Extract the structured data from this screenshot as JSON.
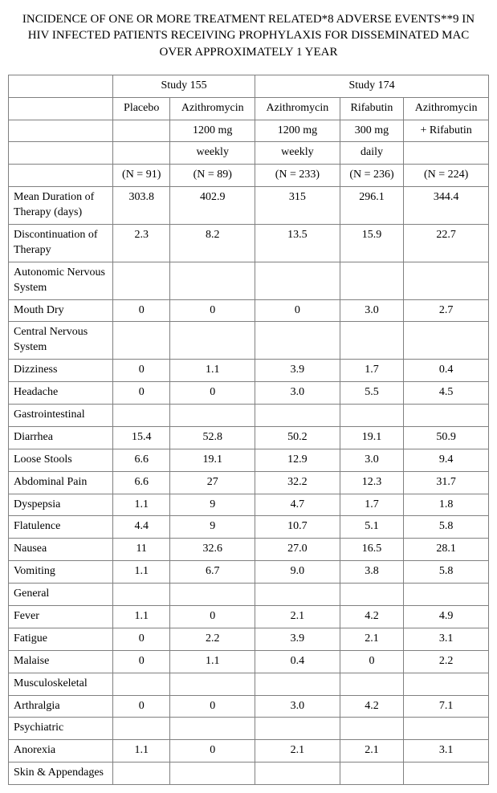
{
  "title": "INCIDENCE OF ONE OR MORE TREATMENT RELATED*8 ADVERSE EVENTS**9 IN HIV INFECTED PATIENTS RECEIVING PROPHYLAXIS FOR DISSEMINATED MAC OVER APPROXIMATELY 1 YEAR",
  "studyHeaders": {
    "s155": "Study 155",
    "s174": "Study 174"
  },
  "colHead1": [
    "Placebo",
    "Azithromycin",
    "Azithromycin",
    "Rifabutin",
    "Azithromycin"
  ],
  "colHead2": [
    "",
    "1200 mg",
    "1200 mg",
    "300 mg",
    "+ Rifabutin"
  ],
  "colHead3": [
    "",
    "weekly",
    "weekly",
    "daily",
    ""
  ],
  "colHead4": [
    "(N = 91)",
    "(N = 89)",
    "(N = 233)",
    "(N = 236)",
    "(N = 224)"
  ],
  "rows": [
    {
      "label": "Mean Duration of Therapy (days)",
      "v": [
        "303.8",
        "402.9",
        "315",
        "296.1",
        "344.4"
      ]
    },
    {
      "label": "Discontinuation of Therapy",
      "v": [
        "2.3",
        "8.2",
        "13.5",
        "15.9",
        "22.7"
      ]
    },
    {
      "label": "Autonomic Nervous System",
      "v": [
        "",
        "",
        "",
        "",
        ""
      ]
    },
    {
      "label": "Mouth Dry",
      "v": [
        "0",
        "0",
        "0",
        "3.0",
        "2.7"
      ]
    },
    {
      "label": "Central Nervous System",
      "v": [
        "",
        "",
        "",
        "",
        ""
      ]
    },
    {
      "label": "Dizziness",
      "v": [
        "0",
        "1.1",
        "3.9",
        "1.7",
        "0.4"
      ]
    },
    {
      "label": "Headache",
      "v": [
        "0",
        "0",
        "3.0",
        "5.5",
        "4.5"
      ]
    },
    {
      "label": "Gastrointestinal",
      "v": [
        "",
        "",
        "",
        "",
        ""
      ]
    },
    {
      "label": "Diarrhea",
      "v": [
        "15.4",
        "52.8",
        "50.2",
        "19.1",
        "50.9"
      ]
    },
    {
      "label": "Loose Stools",
      "v": [
        "6.6",
        "19.1",
        "12.9",
        "3.0",
        "9.4"
      ]
    },
    {
      "label": "Abdominal Pain",
      "v": [
        "6.6",
        "27",
        "32.2",
        "12.3",
        "31.7"
      ]
    },
    {
      "label": "Dyspepsia",
      "v": [
        "1.1",
        "9",
        "4.7",
        "1.7",
        "1.8"
      ]
    },
    {
      "label": "Flatulence",
      "v": [
        "4.4",
        "9",
        "10.7",
        "5.1",
        "5.8"
      ]
    },
    {
      "label": "Nausea",
      "v": [
        "11",
        "32.6",
        "27.0",
        "16.5",
        "28.1"
      ]
    },
    {
      "label": "Vomiting",
      "v": [
        "1.1",
        "6.7",
        "9.0",
        "3.8",
        "5.8"
      ]
    },
    {
      "label": "General",
      "v": [
        "",
        "",
        "",
        "",
        ""
      ]
    },
    {
      "label": "Fever",
      "v": [
        "1.1",
        "0",
        "2.1",
        "4.2",
        "4.9"
      ]
    },
    {
      "label": "Fatigue",
      "v": [
        "0",
        "2.2",
        "3.9",
        "2.1",
        "3.1"
      ]
    },
    {
      "label": "Malaise",
      "v": [
        "0",
        "1.1",
        "0.4",
        "0",
        "2.2"
      ]
    },
    {
      "label": "Musculoskeletal",
      "v": [
        "",
        "",
        "",
        "",
        ""
      ]
    },
    {
      "label": "Arthralgia",
      "v": [
        "0",
        "0",
        "3.0",
        "4.2",
        "7.1"
      ]
    },
    {
      "label": "Psychiatric",
      "v": [
        "",
        "",
        "",
        "",
        ""
      ]
    },
    {
      "label": "Anorexia",
      "v": [
        "1.1",
        "0",
        "2.1",
        "2.1",
        "3.1"
      ]
    },
    {
      "label": "Skin & Appendages",
      "v": [
        "",
        "",
        "",
        "",
        ""
      ]
    }
  ]
}
